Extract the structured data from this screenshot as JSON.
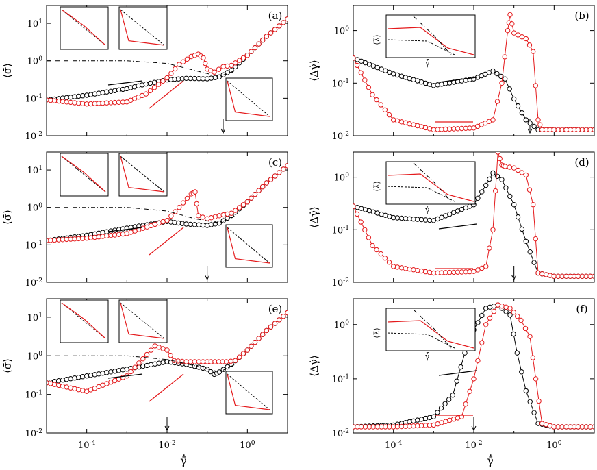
{
  "figure": {
    "colors": {
      "up_sweep": "#e41a1c",
      "down_sweep": "#000000",
      "guide_line": "#000000"
    },
    "shared_xlabel": "γ̄̇",
    "x_tick_labels": [
      "10-4",
      "10-2",
      "100"
    ]
  },
  "chart_data": [
    {
      "panel": "(a)",
      "type": "line",
      "xscale": "log",
      "yscale": "log",
      "xlim": [
        1e-05,
        10
      ],
      "ylim": [
        0.01,
        30
      ],
      "ylabel": "⟨σ̄⟩",
      "ytick_labels": [
        "101",
        "100",
        "10-1",
        "10-2"
      ],
      "marker_x": 0.25,
      "series": [
        {
          "name": "",
          "color": "#000000",
          "x": [
            1e-05,
            0.0001,
            0.001,
            0.003,
            0.01,
            0.03,
            0.1,
            0.2,
            0.4,
            1,
            3,
            10
          ],
          "y": [
            0.09,
            0.12,
            0.18,
            0.24,
            0.31,
            0.34,
            0.33,
            0.37,
            0.55,
            1.4,
            4.5,
            13
          ]
        },
        {
          "name": "",
          "color": "#e41a1c",
          "x": [
            1e-05,
            0.0001,
            0.001,
            0.003,
            0.01,
            0.02,
            0.04,
            0.06,
            0.08,
            0.1,
            0.15,
            0.25,
            0.4,
            1,
            3,
            10
          ],
          "y": [
            0.09,
            0.07,
            0.08,
            0.13,
            0.35,
            0.8,
            1.3,
            1.5,
            1.2,
            0.6,
            0.5,
            0.7,
            0.75,
            1.4,
            4.5,
            13
          ]
        },
        {
          "name": "",
          "color": "#000000",
          "style": "dash-dot",
          "x": [
            1e-05,
            0.001,
            0.01,
            0.05,
            0.2,
            0.5
          ],
          "y": [
            1,
            1,
            0.85,
            0.55,
            0.38,
            0.55
          ]
        }
      ]
    },
    {
      "panel": "(b)",
      "type": "line",
      "xscale": "log",
      "yscale": "log",
      "xlim": [
        1e-05,
        10
      ],
      "ylim": [
        0.01,
        3
      ],
      "ylabel": "⟨Δγ̇⟩",
      "ytick_labels": [
        "100",
        "10-1",
        "10-2"
      ],
      "inset_ylabel": "⟨λ̄⟩",
      "inset_ytick_labels": [
        "103",
        "101"
      ],
      "inset_xlabel": "γ̇̄",
      "marker_x": 0.25,
      "series": [
        {
          "name": "",
          "color": "#000000",
          "x": [
            1e-05,
            0.0001,
            0.001,
            0.01,
            0.03,
            0.06,
            0.1,
            0.2,
            0.4,
            1,
            10
          ],
          "y": [
            0.3,
            0.15,
            0.09,
            0.12,
            0.17,
            0.12,
            0.05,
            0.02,
            0.013,
            0.013,
            0.013
          ]
        },
        {
          "name": "",
          "color": "#e41a1c",
          "x": [
            1e-05,
            3e-05,
            0.0001,
            0.001,
            0.01,
            0.03,
            0.05,
            0.07,
            0.08,
            0.1,
            0.2,
            0.3,
            0.4,
            0.5,
            1,
            10
          ],
          "y": [
            0.3,
            0.06,
            0.02,
            0.013,
            0.014,
            0.02,
            0.1,
            1.0,
            2.0,
            0.9,
            0.7,
            0.4,
            0.02,
            0.013,
            0.013,
            0.013
          ]
        }
      ]
    },
    {
      "panel": "(c)",
      "type": "line",
      "xscale": "log",
      "yscale": "log",
      "xlim": [
        1e-05,
        10
      ],
      "ylim": [
        0.01,
        30
      ],
      "ylabel": "⟨σ̄⟩",
      "ytick_labels": [
        "101",
        "100",
        "10-1",
        "10-2"
      ],
      "marker_x": 0.1,
      "series": [
        {
          "name": "",
          "color": "#000000",
          "x": [
            1e-05,
            0.0001,
            0.001,
            0.01,
            0.03,
            0.1,
            0.2,
            0.4,
            1,
            3,
            10
          ],
          "y": [
            0.13,
            0.18,
            0.28,
            0.42,
            0.36,
            0.33,
            0.38,
            0.6,
            1.4,
            4.5,
            13
          ]
        },
        {
          "name": "",
          "color": "#e41a1c",
          "x": [
            1e-05,
            0.0001,
            0.001,
            0.01,
            0.02,
            0.04,
            0.05,
            0.06,
            0.1,
            0.2,
            0.4,
            1,
            3,
            10
          ],
          "y": [
            0.13,
            0.15,
            0.2,
            0.45,
            1.0,
            2.3,
            2.6,
            0.6,
            0.5,
            0.6,
            0.7,
            1.4,
            4.5,
            13
          ]
        },
        {
          "name": "",
          "color": "#000000",
          "style": "dash-dot",
          "x": [
            1e-05,
            0.001,
            0.01,
            0.05,
            0.2,
            0.5
          ],
          "y": [
            1,
            1,
            0.8,
            0.5,
            0.38,
            0.6
          ]
        }
      ]
    },
    {
      "panel": "(d)",
      "type": "line",
      "xscale": "log",
      "yscale": "log",
      "xlim": [
        1e-05,
        10
      ],
      "ylim": [
        0.01,
        3
      ],
      "ylabel": "⟨Δγ̇⟩",
      "ytick_labels": [
        "100",
        "10-1",
        "10-2"
      ],
      "inset_ylabel": "⟨λ̄⟩",
      "inset_ytick_labels": [
        "103",
        "101"
      ],
      "inset_xlabel": "γ̇̄",
      "marker_x": 0.1,
      "series": [
        {
          "name": "",
          "color": "#000000",
          "x": [
            1e-05,
            0.0001,
            0.001,
            0.01,
            0.02,
            0.03,
            0.05,
            0.1,
            0.2,
            0.4,
            1,
            10
          ],
          "y": [
            0.28,
            0.17,
            0.15,
            0.3,
            0.7,
            1.2,
            0.9,
            0.3,
            0.06,
            0.015,
            0.013,
            0.013
          ]
        },
        {
          "name": "",
          "color": "#e41a1c",
          "x": [
            1e-05,
            3e-05,
            0.0001,
            0.001,
            0.01,
            0.02,
            0.03,
            0.04,
            0.05,
            0.06,
            0.1,
            0.2,
            0.3,
            0.4,
            1,
            10
          ],
          "y": [
            0.28,
            0.05,
            0.02,
            0.015,
            0.016,
            0.02,
            0.1,
            3.0,
            1.7,
            1.6,
            1.5,
            1.1,
            0.3,
            0.015,
            0.013,
            0.013
          ]
        }
      ]
    },
    {
      "panel": "(e)",
      "type": "line",
      "xscale": "log",
      "yscale": "log",
      "xlim": [
        1e-05,
        10
      ],
      "ylim": [
        0.01,
        30
      ],
      "ylabel": "⟨σ̄⟩",
      "ytick_labels": [
        "101",
        "100",
        "10-1",
        "10-2"
      ],
      "marker_x": 0.01,
      "series": [
        {
          "name": "",
          "color": "#000000",
          "x": [
            1e-05,
            0.0001,
            0.001,
            0.01,
            0.03,
            0.1,
            0.15,
            0.2,
            0.4,
            1,
            3,
            10
          ],
          "y": [
            0.2,
            0.3,
            0.45,
            0.7,
            0.6,
            0.45,
            0.33,
            0.38,
            0.6,
            1.4,
            4.5,
            13
          ]
        },
        {
          "name": "",
          "color": "#e41a1c",
          "x": [
            1e-05,
            0.0001,
            0.001,
            0.005,
            0.01,
            0.015,
            0.03,
            0.1,
            0.3,
            0.5,
            1,
            3,
            10
          ],
          "y": [
            0.2,
            0.12,
            0.3,
            1.8,
            1.4,
            0.75,
            0.7,
            0.7,
            0.7,
            0.75,
            1.4,
            4.5,
            13
          ]
        },
        {
          "name": "",
          "color": "#000000",
          "style": "dash-dot",
          "x": [
            1e-05,
            0.001,
            0.01,
            0.05,
            0.2,
            0.5
          ],
          "y": [
            1,
            1,
            0.8,
            0.55,
            0.38,
            0.6
          ]
        }
      ]
    },
    {
      "panel": "(f)",
      "type": "line",
      "xscale": "log",
      "yscale": "log",
      "xlim": [
        1e-05,
        10
      ],
      "ylim": [
        0.01,
        3
      ],
      "ylabel": "⟨Δγ̇⟩",
      "ytick_labels": [
        "100",
        "10-1",
        "10-2"
      ],
      "inset_ylabel": "⟨λ̄⟩",
      "inset_ytick_labels": [
        "103",
        "101"
      ],
      "inset_xlabel": "γ̇̄",
      "marker_x": 0.01,
      "series": [
        {
          "name": "",
          "color": "#000000",
          "x": [
            1e-05,
            0.0001,
            0.001,
            0.003,
            0.006,
            0.01,
            0.02,
            0.04,
            0.08,
            0.12,
            0.2,
            0.4,
            1,
            10
          ],
          "y": [
            0.013,
            0.014,
            0.02,
            0.05,
            0.3,
            0.8,
            2.0,
            2.3,
            1.5,
            0.3,
            0.06,
            0.015,
            0.013,
            0.013
          ]
        },
        {
          "name": "",
          "color": "#e41a1c",
          "x": [
            1e-05,
            0.0001,
            0.001,
            0.005,
            0.01,
            0.02,
            0.04,
            0.08,
            0.15,
            0.25,
            0.35,
            0.5,
            1,
            10
          ],
          "y": [
            0.013,
            0.013,
            0.014,
            0.02,
            0.1,
            1.0,
            2.3,
            2.0,
            1.2,
            0.6,
            0.1,
            0.015,
            0.013,
            0.013
          ]
        }
      ]
    }
  ]
}
